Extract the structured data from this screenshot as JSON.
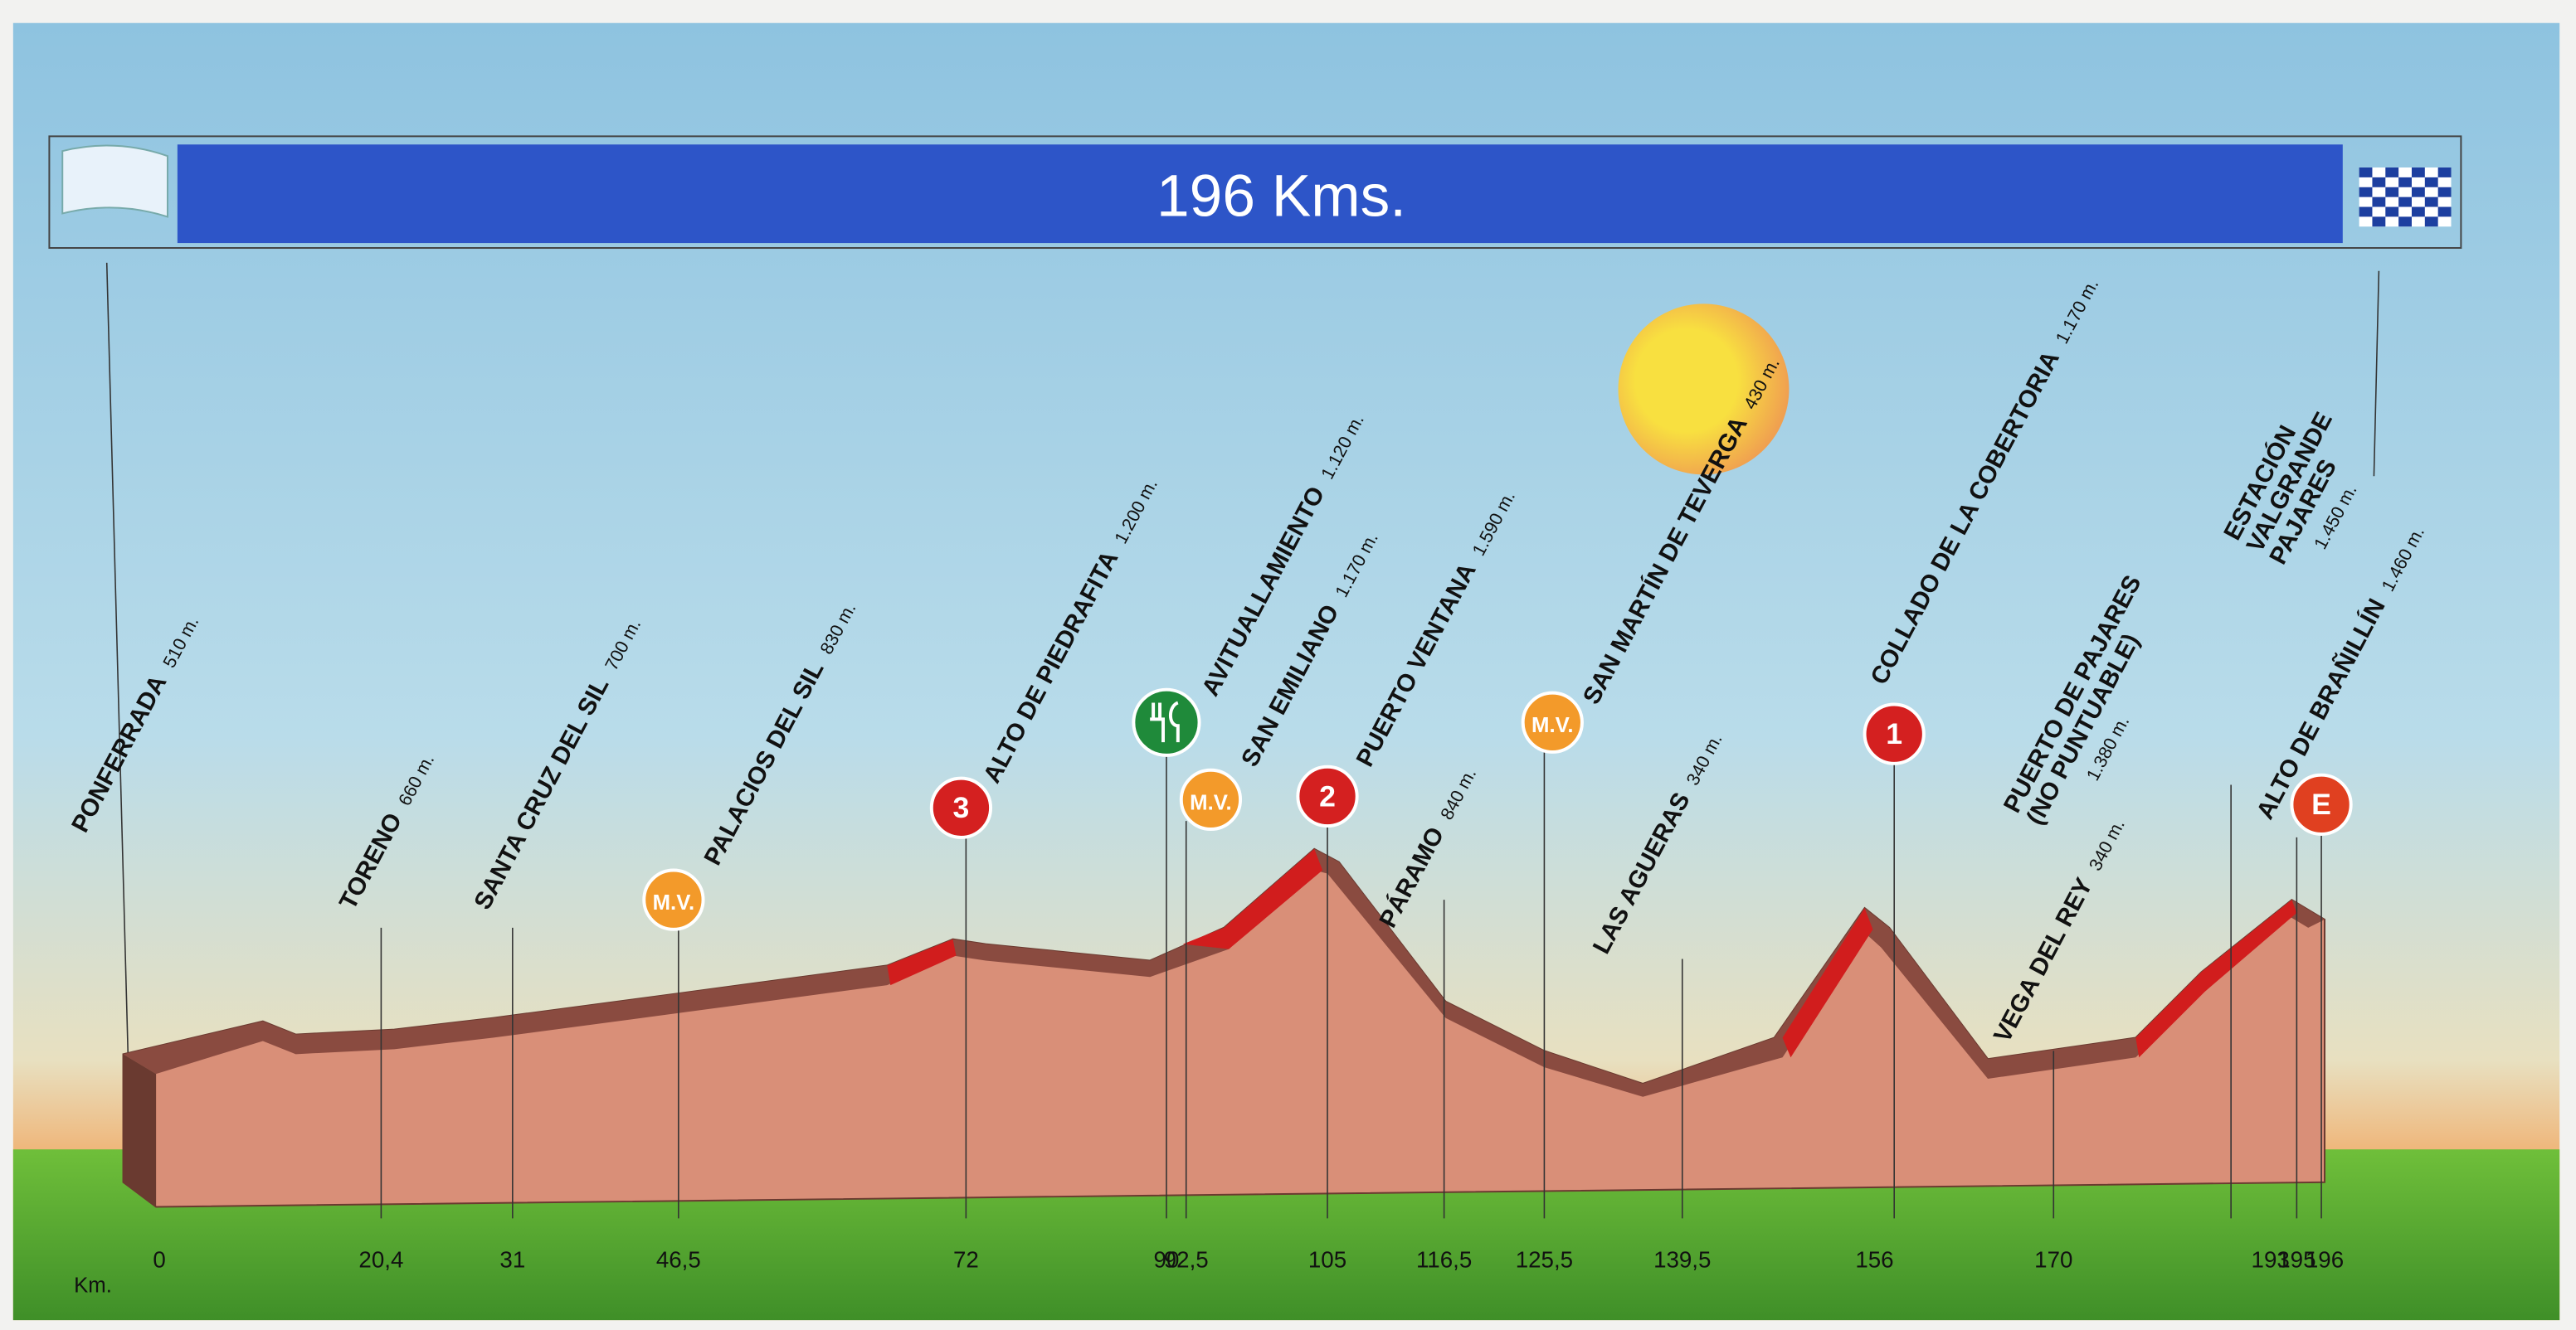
{
  "header": {
    "distance": "196 Kms."
  },
  "axis": {
    "unit": "Km.",
    "ticks": [
      "0",
      "20,4",
      "31",
      "46,5",
      "72",
      "90",
      "92,5",
      "105",
      "116,5",
      "125,5",
      "139,5",
      "156",
      "170",
      "193",
      "195",
      "196"
    ]
  },
  "places": [
    {
      "name": "PONFERRADA",
      "altitude": "510 m."
    },
    {
      "name": "TORENO",
      "altitude": "660 m."
    },
    {
      "name": "SANTA CRUZ DEL SIL",
      "altitude": "700 m."
    },
    {
      "name": "PALACIOS DEL SIL",
      "altitude": "830 m."
    },
    {
      "name": "ALTO DE PIEDRAFITA",
      "altitude": "1.200 m."
    },
    {
      "name": "AVITUALLAMIENTO",
      "altitude": "1.120 m."
    },
    {
      "name": "SAN EMILIANO",
      "altitude": "1.170 m."
    },
    {
      "name": "PUERTO VENTANA",
      "altitude": "1.590 m."
    },
    {
      "name": "PÁRAMO",
      "altitude": "840 m."
    },
    {
      "name": "SAN MARTÍN DE TEVERGA",
      "altitude": "430 m."
    },
    {
      "name": "LAS AGUERAS",
      "altitude": "340 m."
    },
    {
      "name": "COLLADO DE LA COBERTORIA",
      "altitude": "1.170 m."
    },
    {
      "name": "VEGA DEL REY",
      "altitude": "340 m."
    },
    {
      "name": [
        "PUERTO DE PAJARES",
        "(NO PUNTUABLE)"
      ],
      "altitude": "1.380 m."
    },
    {
      "name": "ALTO DE BRAÑILLÍN",
      "altitude": "1.460 m."
    },
    {
      "name": [
        "ESTACIÓN",
        "VALGRANDE",
        "PAJARES"
      ],
      "altitude": "1.450 m."
    }
  ],
  "badges": [
    "M.V.",
    "3",
    "M.V.",
    "2",
    "M.V.",
    "1",
    "E"
  ]
}
